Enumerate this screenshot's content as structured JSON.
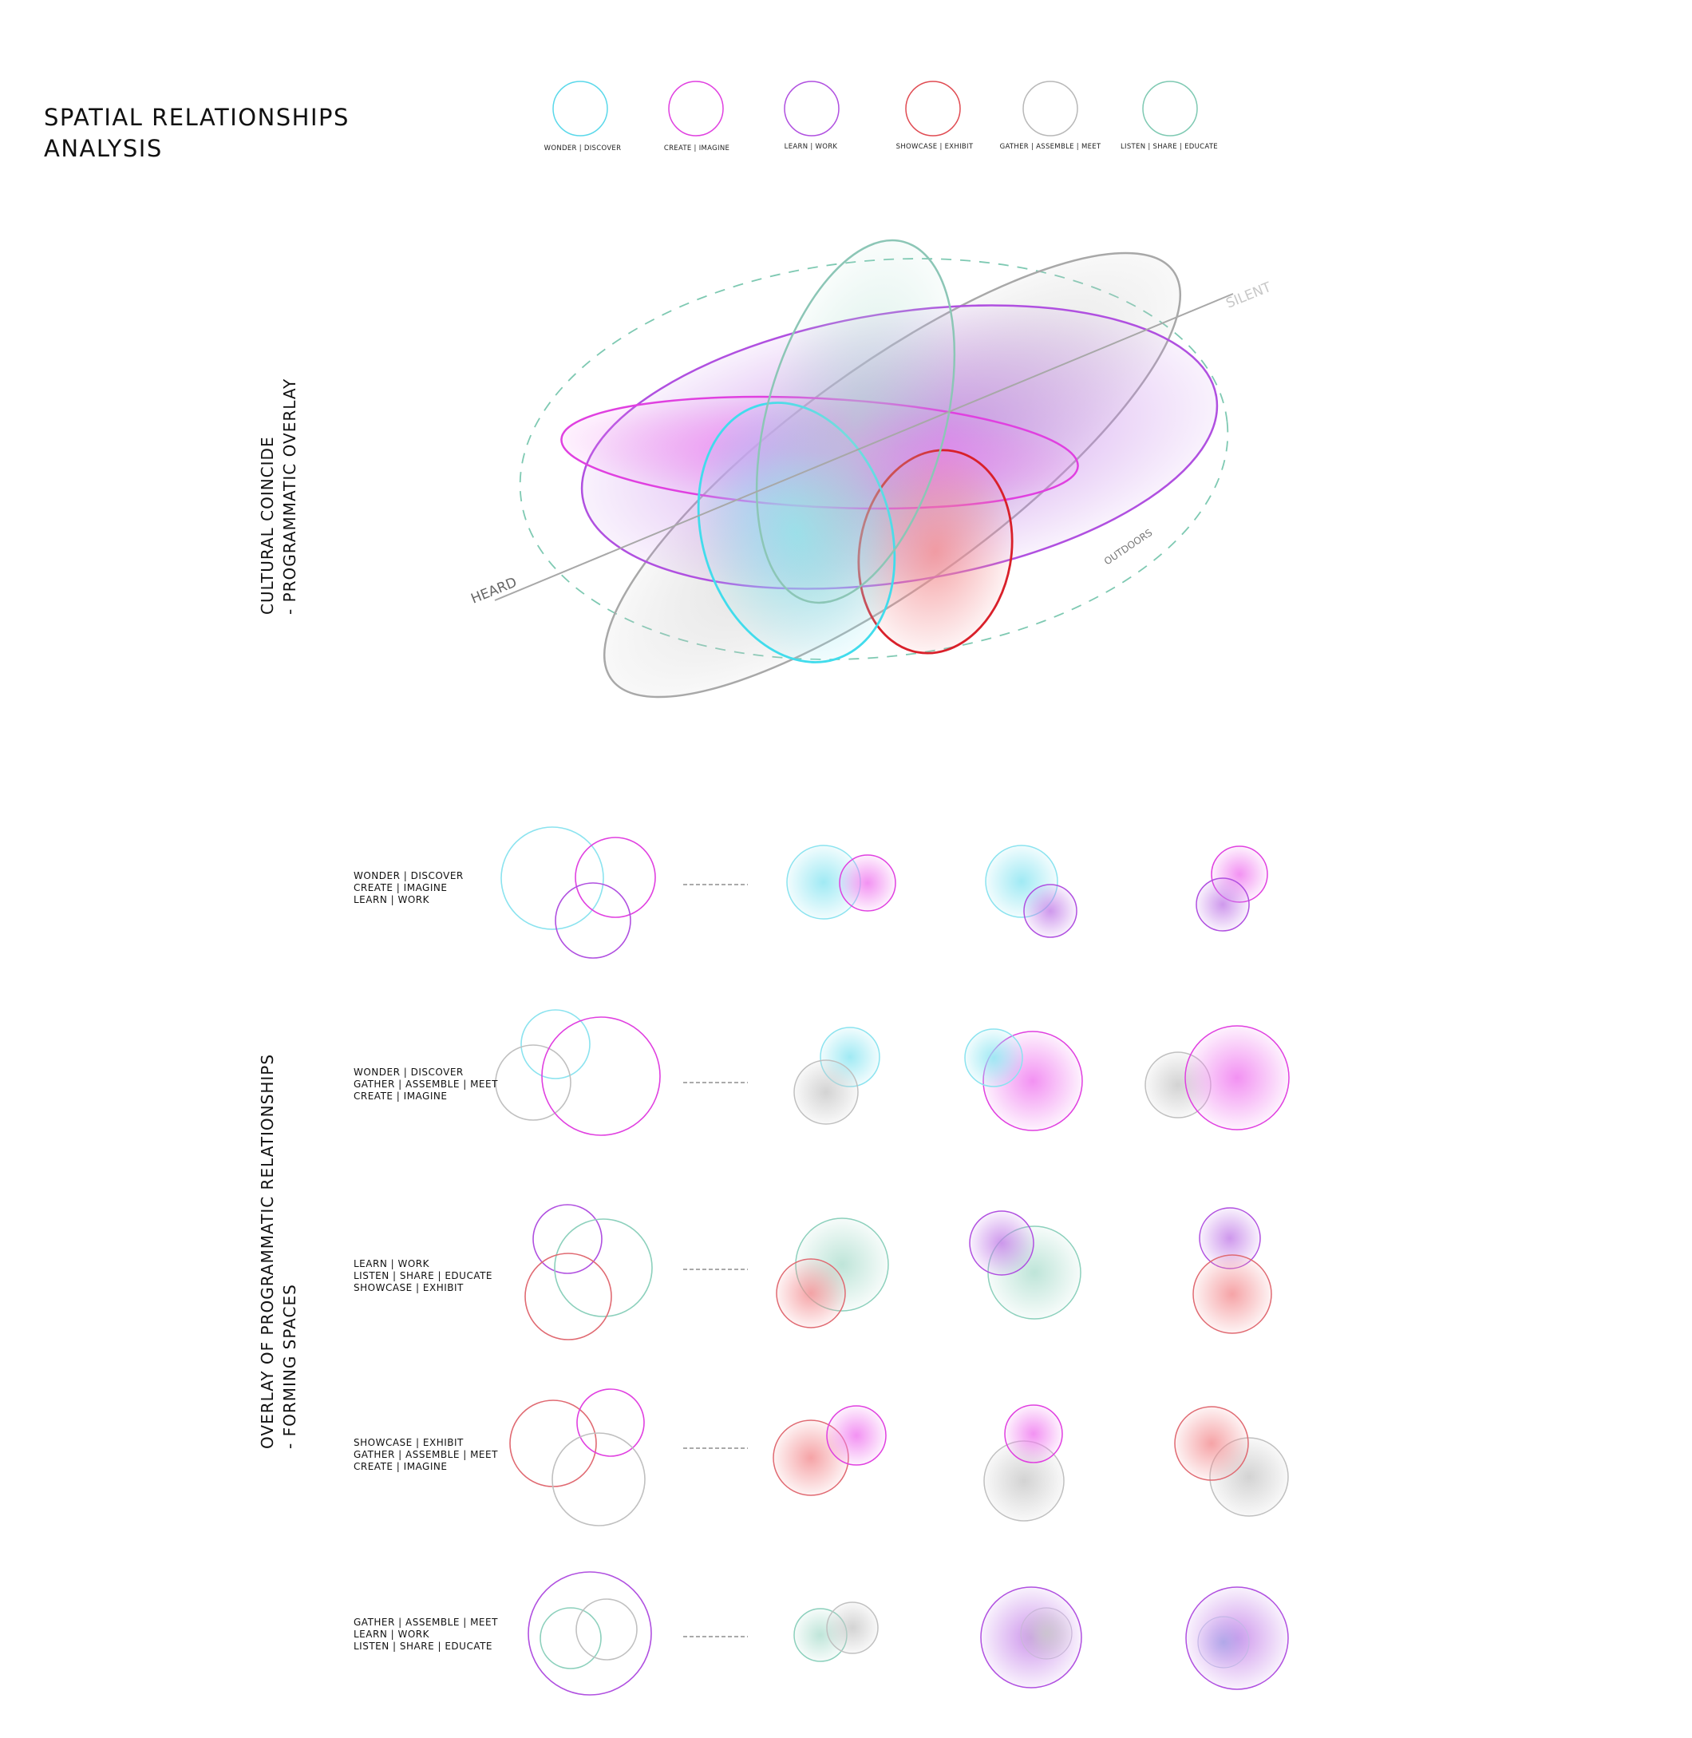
{
  "title": {
    "line1": "SPATIAL RELATIONSHIPS",
    "line2": "ANALYSIS"
  },
  "colors": {
    "wonder": "#5ad8ea",
    "create": "#e040e0",
    "learn": "#b050e0",
    "showcase": "#e04b52",
    "gather": "#b8b8b8",
    "listen": "#7ec9b2"
  },
  "legend": [
    {
      "key": "wonder",
      "label": "WONDER | DISCOVER"
    },
    {
      "key": "create",
      "label": "CREATE | IMAGINE"
    },
    {
      "key": "learn",
      "label": "LEARN | WORK"
    },
    {
      "key": "showcase",
      "label": "SHOWCASE | EXHIBIT"
    },
    {
      "key": "gather",
      "label": "GATHER | ASSEMBLE | MEET"
    },
    {
      "key": "listen",
      "label": "LISTEN | SHARE | EDUCATE"
    }
  ],
  "section1": {
    "line1": "CULTURAL COINCIDE",
    "line2": "- PROGRAMMATIC OVERLAY"
  },
  "section2": {
    "line1": "OVERLAY OF PROGRAMMATIC RELATIONSHIPS",
    "line2": "- FORMING SPACES"
  },
  "axis_labels": {
    "heard": "HEARD",
    "silent": "SILENT",
    "outdoors": "OUTDOORS"
  },
  "rows": [
    {
      "lines": [
        "WONDER | DISCOVER",
        "CREATE | IMAGINE",
        "LEARN | WORK"
      ]
    },
    {
      "lines": [
        "WONDER | DISCOVER",
        "GATHER | ASSEMBLE | MEET",
        "CREATE | IMAGINE"
      ]
    },
    {
      "lines": [
        "LEARN | WORK",
        "LISTEN | SHARE | EDUCATE",
        "SHOWCASE | EXHIBIT"
      ]
    },
    {
      "lines": [
        "SHOWCASE | EXHIBIT",
        "GATHER | ASSEMBLE | MEET",
        "CREATE | IMAGINE"
      ]
    },
    {
      "lines": [
        "GATHER | ASSEMBLE | MEET",
        "LEARN | WORK",
        "LISTEN | SHARE | EDUCATE"
      ]
    }
  ]
}
